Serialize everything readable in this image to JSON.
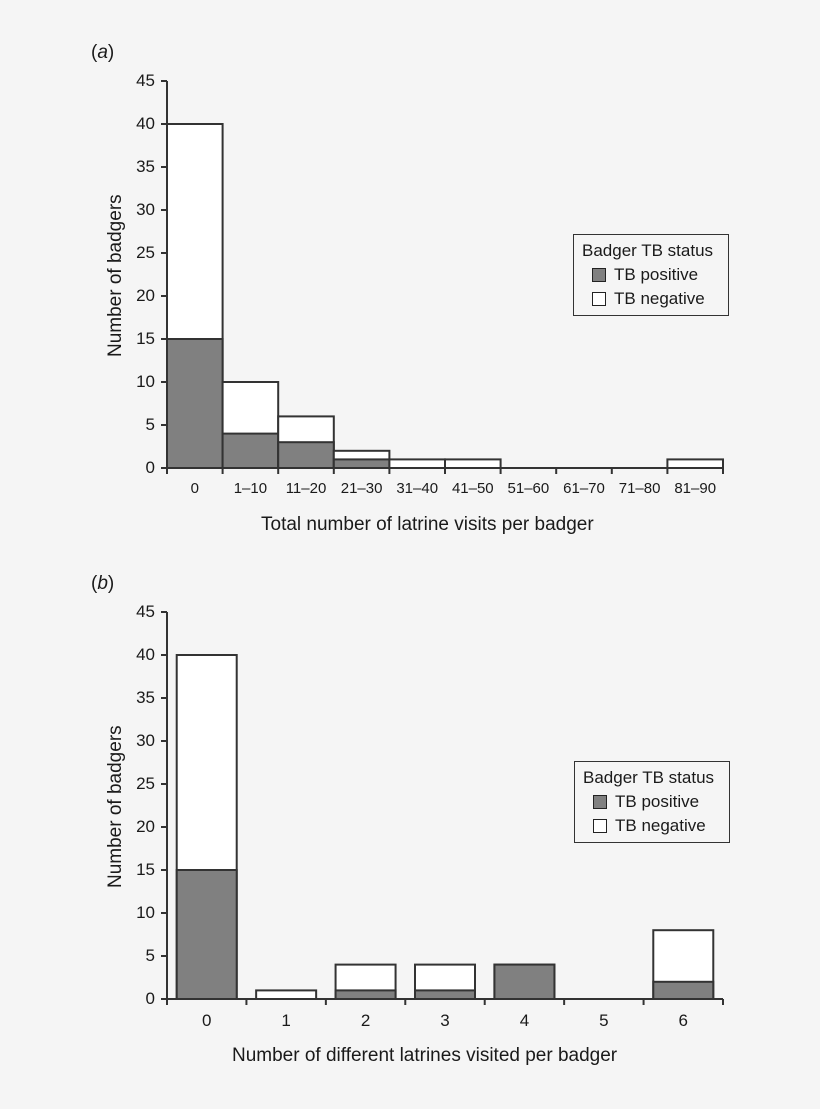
{
  "chart_data": [
    {
      "panel": "(a)",
      "type": "bar",
      "stacked": true,
      "title": "",
      "xlabel": "Total number of latrine visits per badger",
      "ylabel": "Number of badgers",
      "ylim": [
        0,
        45
      ],
      "yticks": [
        0,
        5,
        10,
        15,
        20,
        25,
        30,
        35,
        40,
        45
      ],
      "categories": [
        "0",
        "1–10",
        "11–20",
        "21–30",
        "31–40",
        "41–50",
        "51–60",
        "61–70",
        "71–80",
        "81–90"
      ],
      "series": [
        {
          "name": "TB positive",
          "color": "#808080",
          "values": [
            15,
            4,
            3,
            1,
            0,
            0,
            0,
            0,
            0,
            0
          ]
        },
        {
          "name": "TB negative",
          "color": "#ffffff",
          "values": [
            25,
            6,
            3,
            1,
            1,
            1,
            0,
            0,
            0,
            1
          ]
        }
      ],
      "totals": [
        40,
        10,
        6,
        2,
        1,
        1,
        0,
        0,
        0,
        1
      ],
      "legend": {
        "title": "Badger TB status",
        "position": "right",
        "items": [
          "TB positive",
          "TB negative"
        ]
      },
      "grid": false
    },
    {
      "panel": "(b)",
      "type": "bar",
      "stacked": true,
      "title": "",
      "xlabel": "Number of different latrines visited per badger",
      "ylabel": "Number of badgers",
      "ylim": [
        0,
        45
      ],
      "yticks": [
        0,
        5,
        10,
        15,
        20,
        25,
        30,
        35,
        40,
        45
      ],
      "categories": [
        "0",
        "1",
        "2",
        "3",
        "4",
        "5",
        "6"
      ],
      "series": [
        {
          "name": "TB positive",
          "color": "#808080",
          "values": [
            15,
            0,
            1,
            1,
            4,
            0,
            2
          ]
        },
        {
          "name": "TB negative",
          "color": "#ffffff",
          "values": [
            25,
            1,
            3,
            3,
            0,
            0,
            6
          ]
        }
      ],
      "totals": [
        40,
        1,
        4,
        4,
        4,
        0,
        8
      ],
      "legend": {
        "title": "Badger TB status",
        "position": "right",
        "items": [
          "TB positive",
          "TB negative"
        ]
      },
      "grid": false
    }
  ],
  "panels": {
    "a": {
      "label": "a",
      "xlabel": "Total number of latrine visits per badger",
      "ylabel": "Number of badgers"
    },
    "b": {
      "label": "b",
      "xlabel": "Number of different latrines visited per badger",
      "ylabel": "Number of badgers"
    }
  },
  "legend": {
    "title": "Badger TB status",
    "positive": "TB positive",
    "negative": "TB negative"
  },
  "colors": {
    "positive": "#808080",
    "negative": "#ffffff",
    "axis": "#333333",
    "background": "#f5f5f5"
  }
}
